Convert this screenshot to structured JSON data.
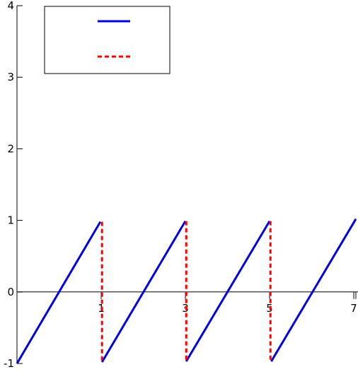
{
  "chart_data": {
    "type": "line",
    "title": "",
    "xlabel": "",
    "ylabel": "",
    "xlim": [
      -1,
      7.1
    ],
    "ylim": [
      -1,
      4
    ],
    "x_ticks": [
      1,
      3,
      5,
      7
    ],
    "x_tick_labels": [
      "1",
      "3",
      "5",
      "7"
    ],
    "y_ticks": [
      -1,
      0,
      1,
      2,
      3,
      4
    ],
    "y_tick_labels": [
      "-1",
      "0",
      "1",
      "2",
      "3",
      "4"
    ],
    "grid": false,
    "legend": {
      "placement": "top-left",
      "entries": [
        "",
        ""
      ]
    },
    "series": [
      {
        "style": "solid",
        "color": "#0000dd",
        "segments": [
          [
            [
              -1,
              -1
            ],
            [
              0.98,
              0.98
            ]
          ],
          [
            [
              1.02,
              -0.98
            ],
            [
              3.0,
              0.99
            ]
          ],
          [
            [
              3.02,
              -0.97
            ],
            [
              5.0,
              0.99
            ]
          ],
          [
            [
              5.04,
              -0.97
            ],
            [
              7.05,
              1.02
            ]
          ]
        ]
      },
      {
        "style": "dashed",
        "color": "#ff0000",
        "segments": [
          [
            [
              1.02,
              0.98
            ],
            [
              1.02,
              -0.98
            ]
          ],
          [
            [
              3.02,
              0.99
            ],
            [
              3.02,
              -0.97
            ]
          ],
          [
            [
              5.02,
              0.99
            ],
            [
              5.02,
              -0.97
            ]
          ]
        ]
      }
    ]
  }
}
